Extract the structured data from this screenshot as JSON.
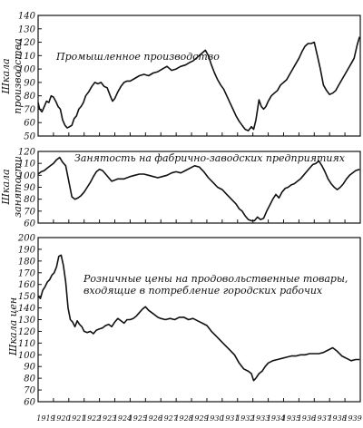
{
  "chart_data": [
    {
      "type": "line",
      "title": "Промышленное производство",
      "ylabel": [
        "Шкала",
        "производства"
      ],
      "ylim": [
        50,
        140
      ],
      "yticks": [
        50,
        60,
        70,
        80,
        90,
        100,
        110,
        120,
        130,
        140
      ],
      "xlim": [
        1919.0,
        1940.0
      ],
      "series": [
        {
          "x": [
            1919.0,
            1919.1,
            1919.25,
            1919.4,
            1919.55,
            1919.7,
            1919.85,
            1920.0,
            1920.15,
            1920.3,
            1920.45,
            1920.6,
            1920.75,
            1920.9,
            1921.05,
            1921.2,
            1921.35,
            1921.5,
            1921.65,
            1921.8,
            1921.95,
            1922.1,
            1922.3,
            1922.5,
            1922.7,
            1922.9,
            1923.1,
            1923.3,
            1923.5,
            1923.7,
            1923.85,
            1924.0,
            1924.2,
            1924.4,
            1924.6,
            1924.8,
            1925.0,
            1925.3,
            1925.6,
            1925.9,
            1926.2,
            1926.5,
            1926.8,
            1927.1,
            1927.4,
            1927.7,
            1928.0,
            1928.3,
            1928.6,
            1928.9,
            1929.1,
            1929.3,
            1929.5,
            1929.7,
            1929.9,
            1930.1,
            1930.3,
            1930.5,
            1930.7,
            1930.9,
            1931.1,
            1931.3,
            1931.5,
            1931.7,
            1931.9,
            1932.1,
            1932.3,
            1932.5,
            1932.7,
            1932.9,
            1933.05,
            1933.2,
            1933.4,
            1933.55,
            1933.7,
            1933.85,
            1934.0,
            1934.2,
            1934.4,
            1934.6,
            1934.8,
            1935.0,
            1935.2,
            1935.4,
            1935.6,
            1935.8,
            1936.0,
            1936.2,
            1936.4,
            1936.6,
            1936.8,
            1937.0,
            1937.2,
            1937.4,
            1937.6,
            1937.8,
            1938.0,
            1938.2,
            1938.4,
            1938.6,
            1938.8,
            1939.0,
            1939.2,
            1939.4,
            1939.6,
            1939.8,
            1939.95
          ],
          "values": [
            75,
            70,
            68,
            72,
            76,
            75,
            80,
            79,
            76,
            72,
            70,
            62,
            58,
            56,
            57,
            58,
            63,
            65,
            70,
            72,
            75,
            80,
            83,
            87,
            90,
            89,
            90,
            87,
            86,
            80,
            76,
            78,
            83,
            87,
            90,
            91,
            91,
            93,
            95,
            96,
            95,
            97,
            98,
            100,
            102,
            99,
            100,
            102,
            103,
            105,
            106,
            108,
            110,
            112,
            114,
            110,
            103,
            97,
            92,
            88,
            85,
            80,
            75,
            70,
            65,
            61,
            58,
            55,
            54,
            57,
            55,
            62,
            77,
            72,
            70,
            72,
            76,
            80,
            82,
            84,
            88,
            90,
            92,
            96,
            100,
            104,
            108,
            113,
            117,
            119,
            119,
            120,
            110,
            100,
            88,
            84,
            81,
            82,
            84,
            88,
            92,
            96,
            100,
            104,
            108,
            118,
            124
          ]
        }
      ]
    },
    {
      "type": "line",
      "title": "Занятость на фабрично-заводских предприятиях",
      "ylabel": [
        "Шкала",
        "занятости"
      ],
      "ylim": [
        60,
        120
      ],
      "yticks": [
        60,
        70,
        80,
        90,
        100,
        110,
        120
      ],
      "xlim": [
        1919.0,
        1940.0
      ],
      "series": [
        {
          "x": [
            1919.0,
            1919.2,
            1919.4,
            1919.6,
            1919.8,
            1920.0,
            1920.2,
            1920.4,
            1920.6,
            1920.8,
            1921.0,
            1921.2,
            1921.4,
            1921.6,
            1921.8,
            1922.0,
            1922.2,
            1922.4,
            1922.6,
            1922.8,
            1923.0,
            1923.2,
            1923.4,
            1923.6,
            1923.8,
            1924.0,
            1924.2,
            1924.4,
            1924.6,
            1924.8,
            1925.0,
            1925.3,
            1925.6,
            1925.9,
            1926.2,
            1926.5,
            1926.8,
            1927.1,
            1927.4,
            1927.7,
            1928.0,
            1928.3,
            1928.6,
            1928.9,
            1929.2,
            1929.5,
            1929.8,
            1930.1,
            1930.4,
            1930.7,
            1931.0,
            1931.3,
            1931.6,
            1931.9,
            1932.1,
            1932.3,
            1932.5,
            1932.7,
            1932.9,
            1933.1,
            1933.3,
            1933.5,
            1933.7,
            1933.9,
            1934.1,
            1934.3,
            1934.5,
            1934.7,
            1934.9,
            1935.1,
            1935.3,
            1935.5,
            1935.7,
            1935.9,
            1936.1,
            1936.3,
            1936.5,
            1936.7,
            1936.9,
            1937.1,
            1937.3,
            1937.5,
            1937.7,
            1937.9,
            1938.1,
            1938.3,
            1938.5,
            1938.7,
            1938.9,
            1939.1,
            1939.3,
            1939.5,
            1939.7,
            1939.95
          ],
          "values": [
            101,
            103,
            104,
            106,
            108,
            110,
            113,
            115,
            111,
            108,
            95,
            82,
            80,
            81,
            83,
            86,
            90,
            94,
            99,
            103,
            105,
            104,
            101,
            98,
            95,
            96,
            97,
            97,
            97,
            98,
            99,
            100,
            101,
            101,
            100,
            99,
            98,
            99,
            100,
            102,
            103,
            102,
            104,
            106,
            108,
            107,
            103,
            98,
            94,
            90,
            88,
            84,
            80,
            76,
            72,
            70,
            66,
            63,
            62,
            62,
            65,
            63,
            64,
            70,
            75,
            80,
            84,
            81,
            86,
            89,
            90,
            92,
            93,
            95,
            97,
            100,
            103,
            106,
            109,
            110,
            112,
            108,
            103,
            97,
            93,
            90,
            88,
            90,
            93,
            97,
            100,
            102,
            104,
            105
          ]
        }
      ]
    },
    {
      "type": "line",
      "title": "Розничные цены на продовольственные товары, входящие в потребление городских рабочих",
      "title_lines": [
        "Розничные цены на продовольственные товары,",
        "входящие в потребление городских рабочих"
      ],
      "ylabel": [
        "Шкала цен"
      ],
      "ylim": [
        60,
        200
      ],
      "yticks": [
        60,
        70,
        80,
        90,
        100,
        110,
        120,
        130,
        140,
        150,
        160,
        170,
        180,
        190,
        200
      ],
      "xlim": [
        1919.0,
        1940.0
      ],
      "xticks": [
        "1919",
        "1920",
        "1921",
        "1922",
        "1923",
        "1924",
        "1925",
        "1926",
        "1927",
        "1928",
        "1929",
        "1930",
        "1931",
        "1932",
        "1933",
        "1934",
        "1935",
        "1936",
        "1937",
        "1938",
        "1939"
      ],
      "series": [
        {
          "x": [
            1919.0,
            1919.15,
            1919.3,
            1919.45,
            1919.6,
            1919.75,
            1919.9,
            1920.05,
            1920.2,
            1920.35,
            1920.5,
            1920.65,
            1920.8,
            1920.95,
            1921.1,
            1921.25,
            1921.4,
            1921.55,
            1921.7,
            1921.85,
            1922.0,
            1922.2,
            1922.4,
            1922.6,
            1922.8,
            1923.0,
            1923.2,
            1923.4,
            1923.6,
            1923.8,
            1924.0,
            1924.2,
            1924.4,
            1924.6,
            1924.8,
            1925.0,
            1925.2,
            1925.4,
            1925.6,
            1925.8,
            1926.0,
            1926.2,
            1926.4,
            1926.6,
            1926.8,
            1927.0,
            1927.3,
            1927.6,
            1927.9,
            1928.2,
            1928.5,
            1928.8,
            1929.1,
            1929.4,
            1929.7,
            1930.0,
            1930.3,
            1930.6,
            1930.9,
            1931.2,
            1931.5,
            1931.8,
            1932.1,
            1932.4,
            1932.7,
            1932.9,
            1933.05,
            1933.2,
            1933.4,
            1933.6,
            1933.8,
            1934.0,
            1934.3,
            1934.6,
            1934.9,
            1935.2,
            1935.5,
            1935.8,
            1936.1,
            1936.4,
            1936.7,
            1937.0,
            1937.3,
            1937.6,
            1937.9,
            1938.2,
            1938.5,
            1938.8,
            1939.1,
            1939.4,
            1939.7,
            1939.95
          ],
          "values": [
            150,
            148,
            155,
            158,
            162,
            164,
            168,
            170,
            175,
            184,
            185,
            176,
            162,
            140,
            130,
            128,
            124,
            129,
            126,
            124,
            120,
            119,
            120,
            118,
            121,
            122,
            123,
            125,
            126,
            124,
            128,
            131,
            129,
            127,
            130,
            130,
            131,
            133,
            136,
            139,
            141,
            138,
            136,
            134,
            132,
            131,
            130,
            131,
            130,
            132,
            132,
            130,
            131,
            129,
            127,
            125,
            120,
            116,
            112,
            108,
            104,
            100,
            93,
            88,
            86,
            84,
            78,
            80,
            84,
            86,
            90,
            93,
            95,
            96,
            97,
            98,
            99,
            99,
            100,
            100,
            101,
            101,
            101,
            102,
            104,
            106,
            103,
            99,
            97,
            95,
            96,
            96
          ]
        }
      ]
    }
  ]
}
